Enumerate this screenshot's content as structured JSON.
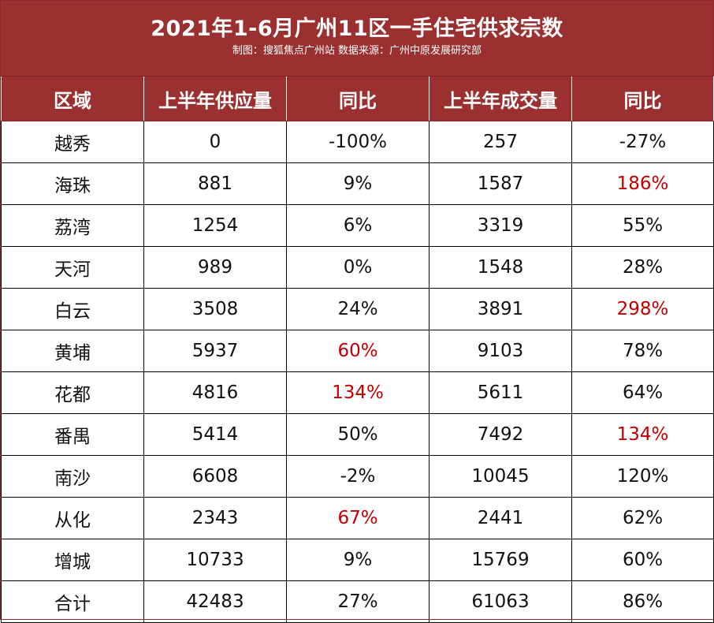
{
  "title": "2021年1-6月广州11区一手住宅供求宗数",
  "subtitle": "制图：搜狐焦点广州站  数据来源：广州中原发展研究部",
  "colors": {
    "header_bg": "#9b3030",
    "highlight": "#c00000"
  },
  "chart_data": {
    "type": "table",
    "columns": [
      "区域",
      "上半年供应量",
      "同比",
      "上半年成交量",
      "同比"
    ],
    "rows": [
      [
        "越秀",
        "0",
        "-100%",
        "257",
        "-27%"
      ],
      [
        "海珠",
        "881",
        "9%",
        "1587",
        "186%"
      ],
      [
        "荔湾",
        "1254",
        "6%",
        "3319",
        "55%"
      ],
      [
        "天河",
        "989",
        "0%",
        "1548",
        "28%"
      ],
      [
        "白云",
        "3508",
        "24%",
        "3891",
        "298%"
      ],
      [
        "黄埔",
        "5937",
        "60%",
        "9103",
        "78%"
      ],
      [
        "花都",
        "4816",
        "134%",
        "5611",
        "64%"
      ],
      [
        "番禺",
        "5414",
        "50%",
        "7492",
        "134%"
      ],
      [
        "南沙",
        "6608",
        "-2%",
        "10045",
        "120%"
      ],
      [
        "从化",
        "2343",
        "67%",
        "2441",
        "62%"
      ],
      [
        "增城",
        "10733",
        "9%",
        "15769",
        "60%"
      ],
      [
        "合计",
        "42483",
        "27%",
        "61063",
        "86%"
      ]
    ],
    "highlighted_cells": [
      [
        1,
        4
      ],
      [
        4,
        4
      ],
      [
        5,
        2
      ],
      [
        6,
        2
      ],
      [
        7,
        4
      ],
      [
        9,
        2
      ]
    ]
  }
}
